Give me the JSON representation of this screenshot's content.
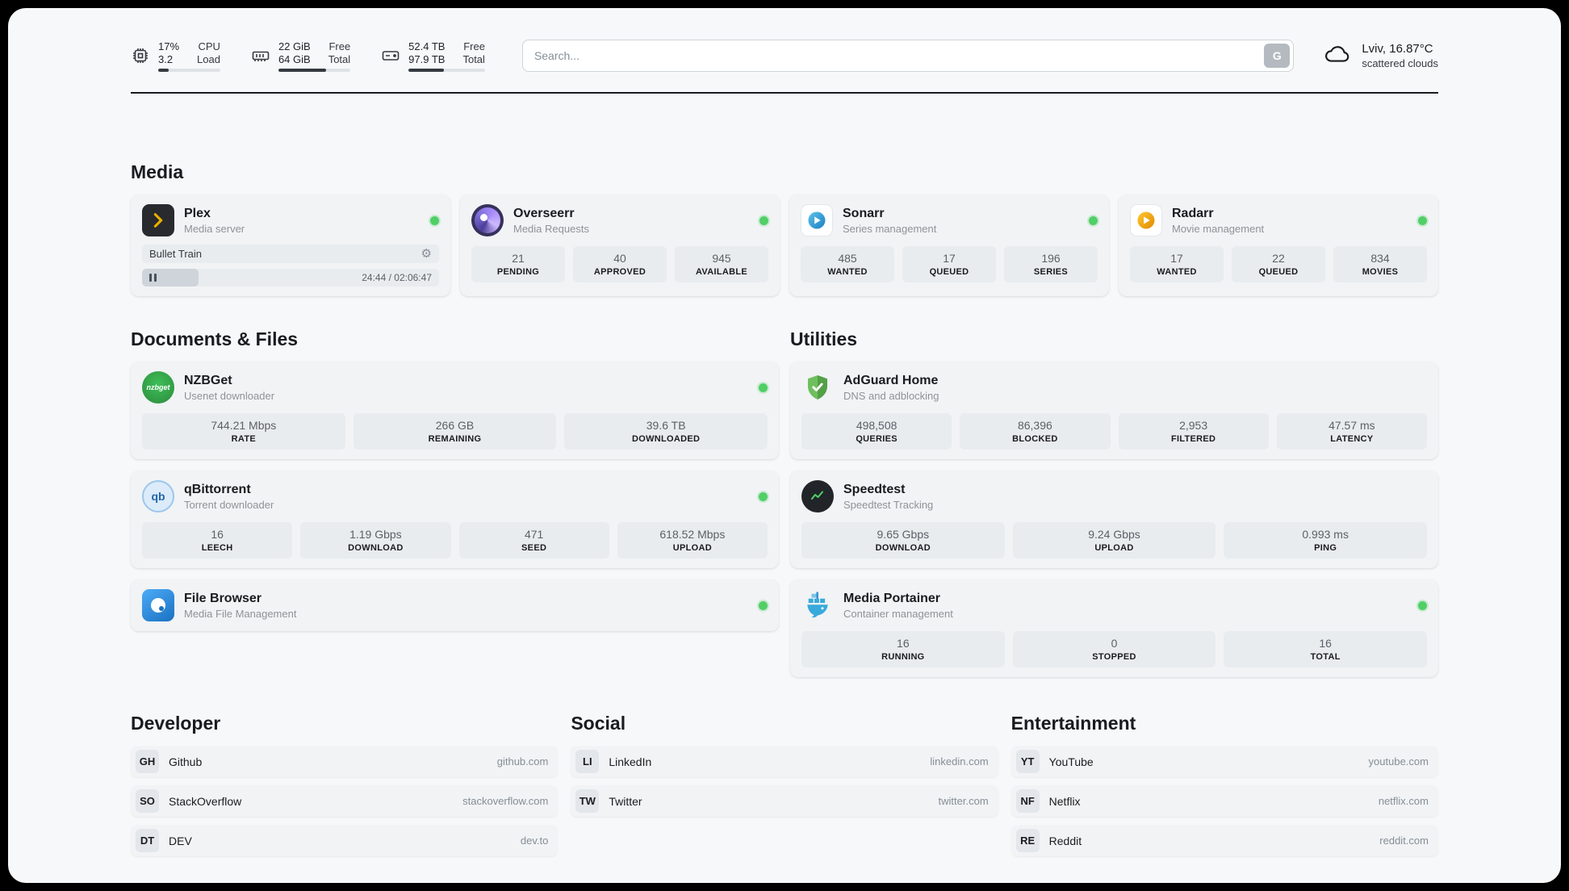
{
  "header": {
    "cpu": {
      "line1_value": "17%",
      "line1_label": "CPU",
      "line2_value": "3.2",
      "line2_label": "Load",
      "percent": 17
    },
    "ram": {
      "line1_value": "22 GiB",
      "line1_label": "Free",
      "line2_value": "64 GiB",
      "line2_label": "Total",
      "percent": 66
    },
    "disk": {
      "line1_value": "52.4 TB",
      "line1_label": "Free",
      "line2_value": "97.9 TB",
      "line2_label": "Total",
      "percent": 46
    },
    "search": {
      "placeholder": "Search...",
      "button_label": "G"
    },
    "weather": {
      "location": "Lviv, 16.87°C",
      "condition": "scattered clouds"
    }
  },
  "sections": {
    "media": {
      "title": "Media",
      "plex": {
        "name": "Plex",
        "subtitle": "Media server",
        "now_playing": {
          "title": "Bullet Train",
          "time": "24:44 / 02:06:47",
          "progress_percent": 19
        }
      },
      "overseerr": {
        "name": "Overseerr",
        "subtitle": "Media Requests",
        "stats": [
          {
            "value": "21",
            "label": "PENDING"
          },
          {
            "value": "40",
            "label": "APPROVED"
          },
          {
            "value": "945",
            "label": "AVAILABLE"
          }
        ]
      },
      "sonarr": {
        "name": "Sonarr",
        "subtitle": "Series management",
        "stats": [
          {
            "value": "485",
            "label": "WANTED"
          },
          {
            "value": "17",
            "label": "QUEUED"
          },
          {
            "value": "196",
            "label": "SERIES"
          }
        ]
      },
      "radarr": {
        "name": "Radarr",
        "subtitle": "Movie management",
        "stats": [
          {
            "value": "17",
            "label": "WANTED"
          },
          {
            "value": "22",
            "label": "QUEUED"
          },
          {
            "value": "834",
            "label": "MOVIES"
          }
        ]
      }
    },
    "documents": {
      "title": "Documents & Files",
      "nzbget": {
        "name": "NZBGet",
        "subtitle": "Usenet downloader",
        "icon_text": "nzbget",
        "stats": [
          {
            "value": "744.21 Mbps",
            "label": "RATE"
          },
          {
            "value": "266 GB",
            "label": "REMAINING"
          },
          {
            "value": "39.6 TB",
            "label": "DOWNLOADED"
          }
        ]
      },
      "qbittorrent": {
        "name": "qBittorrent",
        "subtitle": "Torrent downloader",
        "icon_text": "qb",
        "stats": [
          {
            "value": "16",
            "label": "LEECH"
          },
          {
            "value": "1.19 Gbps",
            "label": "DOWNLOAD"
          },
          {
            "value": "471",
            "label": "SEED"
          },
          {
            "value": "618.52 Mbps",
            "label": "UPLOAD"
          }
        ]
      },
      "filebrowser": {
        "name": "File Browser",
        "subtitle": "Media File Management"
      }
    },
    "utilities": {
      "title": "Utilities",
      "adguard": {
        "name": "AdGuard Home",
        "subtitle": "DNS and adblocking",
        "stats": [
          {
            "value": "498,508",
            "label": "QUERIES"
          },
          {
            "value": "86,396",
            "label": "BLOCKED"
          },
          {
            "value": "2,953",
            "label": "FILTERED"
          },
          {
            "value": "47.57 ms",
            "label": "LATENCY"
          }
        ]
      },
      "speedtest": {
        "name": "Speedtest",
        "subtitle": "Speedtest Tracking",
        "stats": [
          {
            "value": "9.65 Gbps",
            "label": "DOWNLOAD"
          },
          {
            "value": "9.24 Gbps",
            "label": "UPLOAD"
          },
          {
            "value": "0.993 ms",
            "label": "PING"
          }
        ]
      },
      "portainer": {
        "name": "Media Portainer",
        "subtitle": "Container management",
        "stats": [
          {
            "value": "16",
            "label": "RUNNING"
          },
          {
            "value": "0",
            "label": "STOPPED"
          },
          {
            "value": "16",
            "label": "TOTAL"
          }
        ]
      }
    },
    "developer": {
      "title": "Developer",
      "links": [
        {
          "abbr": "GH",
          "name": "Github",
          "url": "github.com"
        },
        {
          "abbr": "SO",
          "name": "StackOverflow",
          "url": "stackoverflow.com"
        },
        {
          "abbr": "DT",
          "name": "DEV",
          "url": "dev.to"
        }
      ]
    },
    "social": {
      "title": "Social",
      "links": [
        {
          "abbr": "LI",
          "name": "LinkedIn",
          "url": "linkedin.com"
        },
        {
          "abbr": "TW",
          "name": "Twitter",
          "url": "twitter.com"
        }
      ]
    },
    "entertainment": {
      "title": "Entertainment",
      "links": [
        {
          "abbr": "YT",
          "name": "YouTube",
          "url": "youtube.com"
        },
        {
          "abbr": "NF",
          "name": "Netflix",
          "url": "netflix.com"
        },
        {
          "abbr": "RE",
          "name": "Reddit",
          "url": "reddit.com"
        }
      ]
    }
  },
  "colors": {
    "status_online": "#51cf66",
    "accent": "#339af0"
  }
}
